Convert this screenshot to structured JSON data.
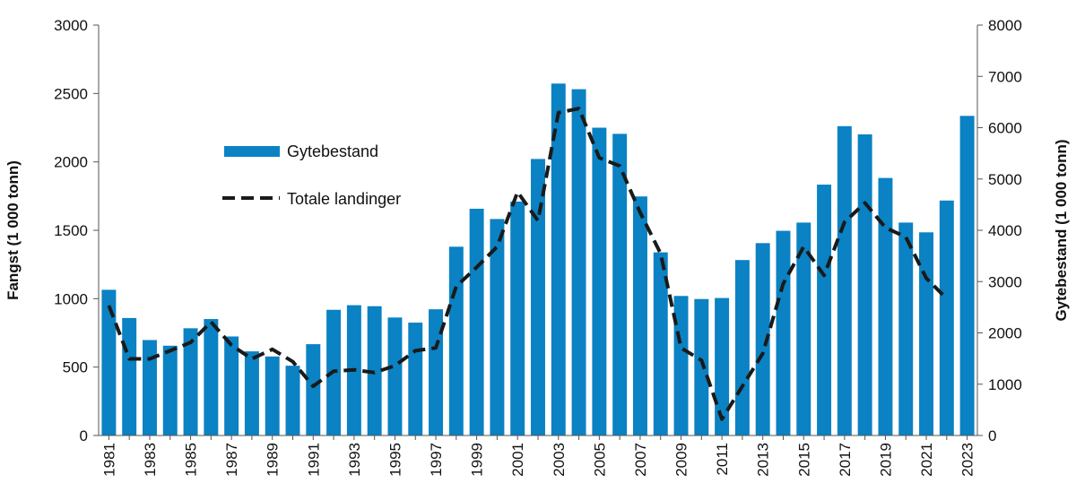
{
  "chart_data": {
    "type": "bar",
    "title": "",
    "ylabel_left": "Fangst (1 000 tonn)",
    "ylabel_right": "Gytebestand (1 000 tonn)",
    "ylim_left": [
      0,
      3000
    ],
    "ylim_right": [
      0,
      8000
    ],
    "yticks_left": [
      "0",
      "500",
      "1000",
      "1500",
      "2000",
      "2500",
      "3000"
    ],
    "yticks_right": [
      "0",
      "1000",
      "2000",
      "3000",
      "4000",
      "5000",
      "6000",
      "7000",
      "8000"
    ],
    "xtick_labels": [
      "1981",
      "1983",
      "1985",
      "1987",
      "1989",
      "1991",
      "1993",
      "1995",
      "1997",
      "1999",
      "2001",
      "2003",
      "2005",
      "2007",
      "2009",
      "2011",
      "2013",
      "2015",
      "2017",
      "2019",
      "2021",
      "2023"
    ],
    "legend_position": "upper-left",
    "colors": {
      "bar": "#0a82c3",
      "line": "#1a1a1a"
    },
    "categories": [
      "1981",
      "1982",
      "1983",
      "1984",
      "1985",
      "1986",
      "1987",
      "1988",
      "1989",
      "1990",
      "1991",
      "1992",
      "1993",
      "1994",
      "1995",
      "1996",
      "1997",
      "1998",
      "1999",
      "2000",
      "2001",
      "2002",
      "2003",
      "2004",
      "2005",
      "2006",
      "2007",
      "2008",
      "2009",
      "2010",
      "2011",
      "2012",
      "2013",
      "2014",
      "2015",
      "2016",
      "2017",
      "2018",
      "2019",
      "2020",
      "2021",
      "2022",
      "2023"
    ],
    "series": [
      {
        "name": "Gytebestand",
        "type": "bar",
        "axis": "right",
        "values": [
          2840,
          2290,
          1860,
          1750,
          2090,
          2270,
          1930,
          1640,
          1540,
          1360,
          1780,
          2450,
          2540,
          2520,
          2300,
          2200,
          2460,
          3680,
          4420,
          4220,
          4560,
          5390,
          6860,
          6750,
          6000,
          5880,
          4660,
          3570,
          2720,
          2660,
          2680,
          3420,
          3750,
          3990,
          4150,
          4890,
          6030,
          5870,
          5020,
          4150,
          3960,
          4580,
          6230
        ]
      },
      {
        "name": "Totale landinger",
        "type": "line",
        "axis": "left",
        "values": [
          950,
          560,
          560,
          620,
          680,
          830,
          660,
          560,
          630,
          540,
          360,
          470,
          480,
          460,
          510,
          620,
          640,
          1090,
          1230,
          1380,
          1780,
          1570,
          2360,
          2390,
          2030,
          1970,
          1630,
          1330,
          640,
          550,
          120,
          360,
          600,
          1110,
          1380,
          1170,
          1560,
          1700,
          1520,
          1450,
          1150,
          1000,
          null
        ]
      }
    ]
  }
}
